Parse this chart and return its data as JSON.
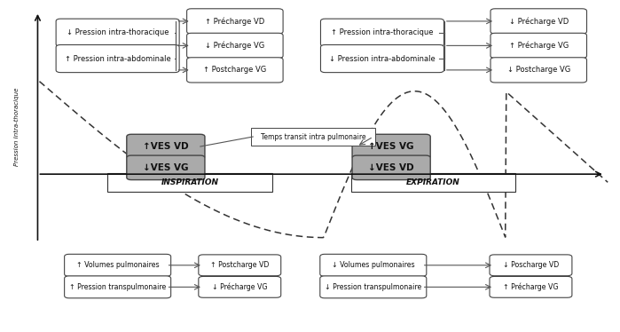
{
  "fig_width": 6.99,
  "fig_height": 3.74,
  "bg_color": "#ffffff",
  "ylabel": "Pression Intra-thoracique",
  "insp_left_labels": [
    "↓ Pression intra-thoracique",
    "↑ Pression intra-abdominale"
  ],
  "insp_right_labels": [
    "↑ Précharge VD",
    "↓ Précharge VG",
    "↑ Postcharge VG"
  ],
  "exp_left_labels": [
    "↑ Pression intra-thoracique",
    "↓ Pression intra-abdominale"
  ],
  "exp_right_labels": [
    "↓ Précharge VD",
    "↑ Précharge VG",
    "↓ Postcharge VG"
  ],
  "insp_ves_labels": [
    "↑VES VD",
    "↓VES VG"
  ],
  "exp_ves_labels": [
    "↑VES VG",
    "↓VES VD"
  ],
  "transit_label": "Temps transit intra pulmonaire",
  "inspiration_label": "INSPIRATION",
  "expiration_label": "EXPIRATION",
  "bot_insp_left_labels": [
    "↑ Volumes pulmonaires",
    "↑ Pression transpulmonaire"
  ],
  "bot_insp_right_labels": [
    "↑ Postcharge VD",
    "↓ Précharge VG"
  ],
  "bot_exp_left_labels": [
    "↓ Volumes pulmonaires",
    "↓ Pression transpulmonaire"
  ],
  "bot_exp_right_labels": [
    "↓ Poscharge VD",
    "↑ Précharge VG"
  ]
}
